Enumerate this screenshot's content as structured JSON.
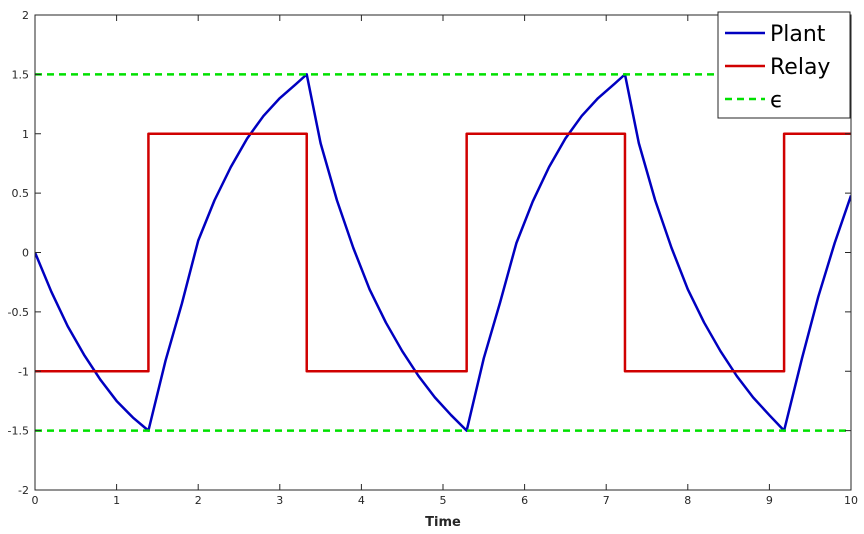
{
  "chart_data": {
    "type": "line",
    "title": "",
    "xlabel": "Time",
    "ylabel": "",
    "xlim": [
      0,
      10
    ],
    "ylim": [
      -2,
      2
    ],
    "grid": false,
    "legend_position": "top-right",
    "xticks": [
      "0",
      "1",
      "2",
      "3",
      "4",
      "5",
      "6",
      "7",
      "8",
      "9",
      "10"
    ],
    "yticks": [
      "2",
      "1.5",
      "1",
      "0.5",
      "0",
      "-0.5",
      "-1",
      "-1.5",
      "-2"
    ],
    "series": [
      {
        "name": "Plant",
        "color": "#0000c0",
        "style": "solid",
        "x": [
          0,
          0.2,
          0.4,
          0.6,
          0.8,
          1.0,
          1.2,
          1.39,
          1.6,
          1.8,
          2.0,
          2.2,
          2.4,
          2.6,
          2.8,
          3.0,
          3.2,
          3.33,
          3.5,
          3.7,
          3.9,
          4.1,
          4.3,
          4.5,
          4.7,
          4.9,
          5.1,
          5.29,
          5.5,
          5.7,
          5.9,
          6.1,
          6.3,
          6.5,
          6.7,
          6.9,
          7.1,
          7.23,
          7.4,
          7.6,
          7.8,
          8.0,
          8.2,
          8.4,
          8.6,
          8.8,
          9.0,
          9.18,
          9.4,
          9.6,
          9.8,
          10.0
        ],
        "y": [
          0,
          -0.33,
          -0.62,
          -0.86,
          -1.07,
          -1.25,
          -1.39,
          -1.5,
          -0.91,
          -0.43,
          0.1,
          0.44,
          0.72,
          0.96,
          1.15,
          1.3,
          1.42,
          1.5,
          0.92,
          0.44,
          0.04,
          -0.31,
          -0.59,
          -0.83,
          -1.04,
          -1.22,
          -1.37,
          -1.5,
          -0.89,
          -0.42,
          0.08,
          0.43,
          0.72,
          0.96,
          1.15,
          1.3,
          1.42,
          1.5,
          0.92,
          0.44,
          0.04,
          -0.31,
          -0.59,
          -0.83,
          -1.04,
          -1.22,
          -1.37,
          -1.5,
          -0.89,
          -0.37,
          0.08,
          0.48
        ]
      },
      {
        "name": "Relay",
        "color": "#d00000",
        "style": "solid",
        "x": [
          0,
          1.39,
          1.39,
          3.33,
          3.33,
          5.29,
          5.29,
          7.23,
          7.23,
          9.18,
          9.18,
          10
        ],
        "y": [
          -1,
          -1,
          1,
          1,
          -1,
          -1,
          1,
          1,
          -1,
          -1,
          1,
          1
        ]
      },
      {
        "name": "ϵ",
        "color": "#00e000",
        "style": "dashed",
        "x": [
          0,
          10
        ],
        "y": [
          1.5,
          1.5
        ]
      },
      {
        "name": "",
        "color": "#00e000",
        "style": "dashed",
        "x": [
          0,
          10
        ],
        "y": [
          -1.5,
          -1.5
        ]
      }
    ],
    "legend": [
      {
        "label": "Plant",
        "color": "#0000c0",
        "style": "solid"
      },
      {
        "label": "Relay",
        "color": "#d00000",
        "style": "solid"
      },
      {
        "label": "ϵ",
        "color": "#00e000",
        "style": "dashed"
      }
    ]
  }
}
